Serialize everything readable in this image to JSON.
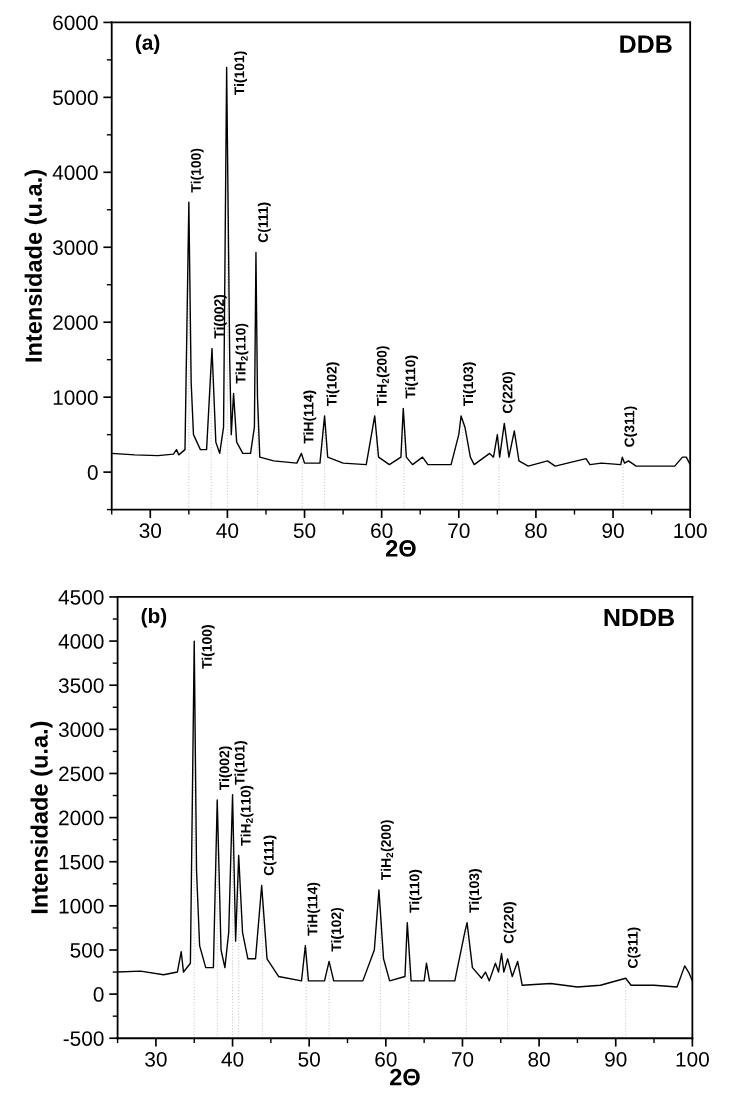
{
  "chart_data": [
    {
      "type": "line",
      "xlabel": "2Θ",
      "ylabel": "Intensidade (u.a.)",
      "xlim": [
        25,
        100
      ],
      "xticks": [
        30,
        40,
        50,
        60,
        70,
        80,
        90,
        100
      ],
      "ylim": [
        -500,
        6000
      ],
      "yticks": [
        0,
        1000,
        2000,
        3000,
        4000,
        5000,
        6000
      ],
      "grid": false,
      "legend": false,
      "marker": "none",
      "line_style": "solid",
      "series": [
        {
          "color": "#000000",
          "x": [
            25,
            28,
            31,
            33,
            33.4,
            33.7,
            34.5,
            35,
            35.3,
            35.6,
            36.5,
            37.3,
            38,
            38.5,
            39,
            39.5,
            39.9,
            40.3,
            40.5,
            40.8,
            41.2,
            42,
            43,
            43.5,
            43.7,
            43.9,
            44.2,
            46,
            49,
            49.6,
            50,
            52,
            52.6,
            53,
            55,
            58,
            59.1,
            59.6,
            61,
            62.5,
            62.8,
            63.2,
            64,
            65.3,
            66,
            69,
            70,
            70.3,
            70.8,
            71.5,
            72,
            74,
            74.5,
            75,
            75.3,
            75.9,
            76.5,
            77.2,
            77.8,
            79,
            81.5,
            82.5,
            86.5,
            87,
            88.5,
            91,
            91.2,
            91.5,
            92,
            93,
            98,
            99,
            99.5,
            100
          ],
          "values": [
            250,
            230,
            220,
            240,
            300,
            230,
            300,
            3600,
            1200,
            500,
            300,
            300,
            1650,
            400,
            250,
            600,
            5400,
            1500,
            500,
            1050,
            400,
            250,
            250,
            600,
            2930,
            1000,
            200,
            150,
            120,
            250,
            120,
            120,
            750,
            200,
            120,
            100,
            750,
            200,
            100,
            200,
            850,
            200,
            100,
            200,
            100,
            100,
            500,
            750,
            600,
            200,
            100,
            250,
            200,
            500,
            200,
            650,
            200,
            550,
            150,
            80,
            150,
            80,
            180,
            100,
            120,
            100,
            200,
            120,
            150,
            80,
            80,
            200,
            200,
            100
          ]
        }
      ],
      "ref_lines": [
        {
          "axis": "x",
          "value": 35,
          "color": "#cccccc",
          "line_style": "dotted"
        },
        {
          "axis": "x",
          "value": 37.9,
          "color": "#cccccc",
          "line_style": "dotted"
        },
        {
          "axis": "x",
          "value": 40,
          "color": "#cccccc",
          "line_style": "dotted"
        },
        {
          "axis": "x",
          "value": 43.9,
          "color": "#cccccc",
          "line_style": "dotted"
        },
        {
          "axis": "x",
          "value": 49.7,
          "color": "#cccccc",
          "line_style": "dotted"
        },
        {
          "axis": "x",
          "value": 52.6,
          "color": "#cccccc",
          "line_style": "dotted"
        },
        {
          "axis": "x",
          "value": 59.3,
          "color": "#cccccc",
          "line_style": "dotted"
        },
        {
          "axis": "x",
          "value": 62.9,
          "color": "#cccccc",
          "line_style": "dotted"
        },
        {
          "axis": "x",
          "value": 70.5,
          "color": "#cccccc",
          "line_style": "dotted"
        },
        {
          "axis": "x",
          "value": 75.2,
          "color": "#cccccc",
          "line_style": "dotted"
        },
        {
          "axis": "x",
          "value": 91.3,
          "color": "#cccccc",
          "line_style": "dotted"
        }
      ],
      "annotations": [
        "(a)",
        "DDB",
        {
          "text": "Ti(100)",
          "x": 35,
          "y": 3600
        },
        {
          "text": "Ti(002)",
          "x": 38,
          "y": 1650
        },
        {
          "text": "Ti(101)",
          "x": 39.9,
          "y": 5400
        },
        {
          "text": "TiH$_{2}$(110)",
          "x": 40.8,
          "y": 1050
        },
        {
          "text": "C(111)",
          "x": 43.7,
          "y": 2930
        },
        {
          "text": "TiH(114)",
          "x": 49.6,
          "y": 250
        },
        {
          "text": "Ti(102)",
          "x": 52.6,
          "y": 750
        },
        {
          "text": "TiH$_{2}$(200)",
          "x": 59.1,
          "y": 750
        },
        {
          "text": "Ti(110)",
          "x": 62.8,
          "y": 850
        },
        {
          "text": "Ti(103)",
          "x": 70.3,
          "y": 750
        },
        {
          "text": "C(220)",
          "x": 75.4,
          "y": 650
        },
        {
          "text": "C(311)",
          "x": 91.2,
          "y": 200
        }
      ]
    },
    {
      "type": "line",
      "xlabel": "2Θ",
      "ylabel": "Intensidade (u.a.)",
      "xlim": [
        25,
        100
      ],
      "xticks": [
        30,
        40,
        50,
        60,
        70,
        80,
        90,
        100
      ],
      "ylim": [
        -500,
        4500
      ],
      "yticks": [
        -500,
        0,
        500,
        1000,
        1500,
        2000,
        2500,
        3000,
        3500,
        4000,
        4500
      ],
      "grid": false,
      "legend": false,
      "marker": "none",
      "line_style": "solid",
      "series": [
        {
          "color": "#000000",
          "x": [
            25,
            28,
            31,
            32.8,
            33.3,
            33.6,
            34.5,
            35,
            35.3,
            35.7,
            36.5,
            37.5,
            38,
            38.5,
            39,
            39.5,
            40,
            40.4,
            40.8,
            41.3,
            42,
            43,
            43.8,
            44.5,
            46,
            49,
            49.5,
            49.9,
            52,
            52.6,
            53.2,
            57,
            58.5,
            59.1,
            59.7,
            60.5,
            62.5,
            62.8,
            63.3,
            65,
            65.3,
            65.7,
            69,
            70.3,
            70.6,
            71.3,
            72.5,
            73,
            73.5,
            74.3,
            74.7,
            75.1,
            75.4,
            75.9,
            76.5,
            77.2,
            77.8,
            81.5,
            85,
            88,
            91.3,
            92,
            95,
            98,
            99,
            99.5,
            100
          ],
          "values": [
            250,
            260,
            220,
            250,
            480,
            250,
            350,
            4000,
            1400,
            550,
            300,
            300,
            2200,
            500,
            300,
            700,
            2260,
            600,
            1570,
            700,
            400,
            400,
            1230,
            400,
            200,
            150,
            550,
            150,
            150,
            370,
            150,
            150,
            500,
            1180,
            400,
            150,
            200,
            810,
            150,
            150,
            350,
            150,
            150,
            700,
            810,
            300,
            180,
            250,
            150,
            350,
            250,
            460,
            250,
            400,
            200,
            370,
            100,
            120,
            80,
            100,
            180,
            100,
            100,
            80,
            320,
            250,
            150
          ]
        }
      ],
      "ref_lines": [
        {
          "axis": "x",
          "value": 35,
          "color": "#cccccc",
          "line_style": "dotted"
        },
        {
          "axis": "x",
          "value": 38,
          "color": "#cccccc",
          "line_style": "dotted"
        },
        {
          "axis": "x",
          "value": 40,
          "color": "#cccccc",
          "line_style": "dotted"
        },
        {
          "axis": "x",
          "value": 40.8,
          "color": "#cccccc",
          "line_style": "dotted"
        },
        {
          "axis": "x",
          "value": 43.9,
          "color": "#cccccc",
          "line_style": "dotted"
        },
        {
          "axis": "x",
          "value": 49.6,
          "color": "#cccccc",
          "line_style": "dotted"
        },
        {
          "axis": "x",
          "value": 52.6,
          "color": "#cccccc",
          "line_style": "dotted"
        },
        {
          "axis": "x",
          "value": 59.3,
          "color": "#cccccc",
          "line_style": "dotted"
        },
        {
          "axis": "x",
          "value": 63,
          "color": "#cccccc",
          "line_style": "dotted"
        },
        {
          "axis": "x",
          "value": 70.5,
          "color": "#cccccc",
          "line_style": "dotted"
        },
        {
          "axis": "x",
          "value": 75.9,
          "color": "#cccccc",
          "line_style": "dotted"
        },
        {
          "axis": "x",
          "value": 91.3,
          "color": "#cccccc",
          "line_style": "dotted"
        }
      ],
      "annotations": [
        "(b)",
        "NDDB",
        {
          "text": "Ti(100)",
          "x": 35,
          "y": 4000
        },
        {
          "text": "Ti(002)",
          "x": 38,
          "y": 2200
        },
        {
          "text": "Ti(101)",
          "x": 40,
          "y": 2260
        },
        {
          "text": "TiH$_{2}$(110)",
          "x": 40.8,
          "y": 1570
        },
        {
          "text": "C(111)",
          "x": 43.8,
          "y": 1230
        },
        {
          "text": "TiH(114)",
          "x": 49.5,
          "y": 550
        },
        {
          "text": "Ti(102)",
          "x": 52.6,
          "y": 370
        },
        {
          "text": "TiH$_{2}$(200)",
          "x": 59.1,
          "y": 1180
        },
        {
          "text": "Ti(110)",
          "x": 62.8,
          "y": 810
        },
        {
          "text": "Ti(103)",
          "x": 70.6,
          "y": 810
        },
        {
          "text": "C(220)",
          "x": 75.1,
          "y": 460
        },
        {
          "text": "C(311)",
          "x": 91.3,
          "y": 180
        }
      ]
    }
  ]
}
